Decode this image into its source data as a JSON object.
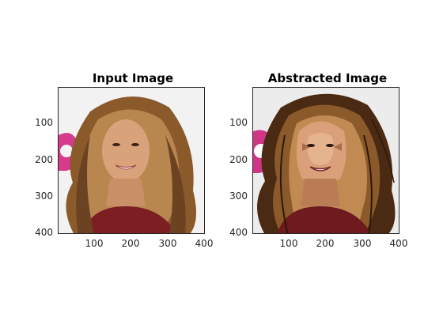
{
  "figure": {
    "panels": [
      {
        "title": "Input Image",
        "y_ticks": [
          "100",
          "200",
          "300",
          "400"
        ],
        "x_ticks": [
          "100",
          "200",
          "300",
          "400"
        ]
      },
      {
        "title": "Abstracted Image",
        "y_ticks": [
          "100",
          "200",
          "300",
          "400"
        ],
        "x_ticks": [
          "100",
          "200",
          "300",
          "400"
        ]
      }
    ],
    "axis_range": [
      0,
      400
    ]
  },
  "colors": {
    "background": "#ffffff",
    "axes": "#262626",
    "hair": "#8a5a2b",
    "hair_light": "#b8864f",
    "skin": "#d8a27a",
    "dress": "#7d1e22",
    "pink": "#d63a8d",
    "photo_bg": "#f2f2f2"
  }
}
